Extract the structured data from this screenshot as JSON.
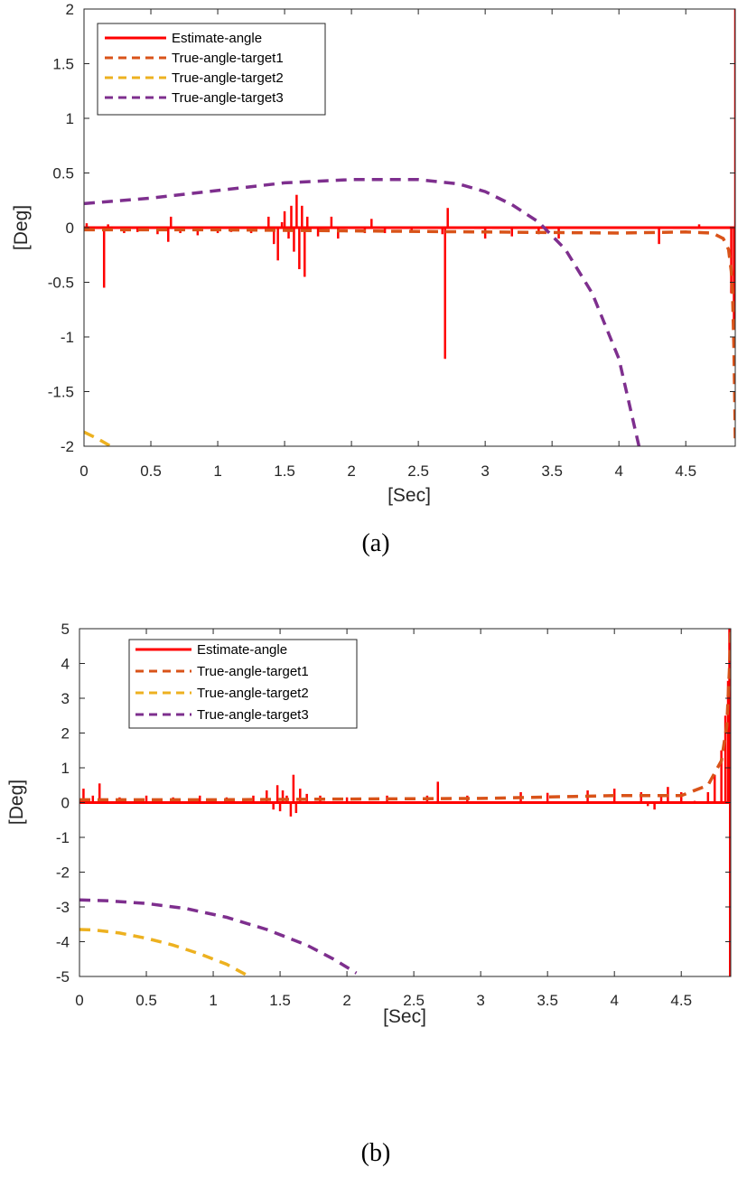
{
  "colors": {
    "estimate": "#ff0000",
    "target1": "#d95319",
    "target2": "#edb120",
    "target3": "#7e2f8e",
    "axis": "#262626"
  },
  "chart_data": [
    {
      "type": "line",
      "caption": "(a)",
      "xlabel": "[Sec]",
      "ylabel": "[Deg]",
      "xlim": [
        0,
        4.87
      ],
      "ylim": [
        -2,
        2
      ],
      "xticks": [
        "0",
        "0.5",
        "1",
        "1.5",
        "2",
        "2.5",
        "3",
        "3.5",
        "4",
        "4.5"
      ],
      "yticks": [
        "2",
        "1.5",
        "1",
        "0.5",
        "0",
        "-0.5",
        "-1",
        "-1.5",
        "-2"
      ],
      "legend_position": "top-left",
      "grid": false,
      "series": [
        {
          "name": "Estimate-angle",
          "style": "solid",
          "baseline": 0,
          "spikes": [
            [
              0.02,
              0.04
            ],
            [
              0.05,
              -0.03
            ],
            [
              0.15,
              -0.55
            ],
            [
              0.18,
              0.03
            ],
            [
              0.3,
              -0.05
            ],
            [
              0.4,
              -0.04
            ],
            [
              0.55,
              -0.06
            ],
            [
              0.63,
              -0.13
            ],
            [
              0.65,
              0.1
            ],
            [
              0.72,
              -0.05
            ],
            [
              0.85,
              -0.07
            ],
            [
              1.0,
              -0.05
            ],
            [
              1.1,
              -0.04
            ],
            [
              1.25,
              -0.05
            ],
            [
              1.38,
              0.1
            ],
            [
              1.42,
              -0.15
            ],
            [
              1.45,
              -0.3
            ],
            [
              1.48,
              0.05
            ],
            [
              1.5,
              0.15
            ],
            [
              1.53,
              -0.1
            ],
            [
              1.55,
              0.2
            ],
            [
              1.57,
              -0.22
            ],
            [
              1.59,
              0.3
            ],
            [
              1.61,
              -0.38
            ],
            [
              1.63,
              0.2
            ],
            [
              1.65,
              -0.45
            ],
            [
              1.67,
              0.1
            ],
            [
              1.75,
              -0.08
            ],
            [
              1.85,
              0.1
            ],
            [
              1.9,
              -0.1
            ],
            [
              2.1,
              -0.05
            ],
            [
              2.15,
              0.08
            ],
            [
              2.25,
              -0.05
            ],
            [
              2.45,
              -0.04
            ],
            [
              2.68,
              -0.06
            ],
            [
              2.7,
              -1.2
            ],
            [
              2.72,
              0.18
            ],
            [
              3.0,
              -0.1
            ],
            [
              3.2,
              -0.08
            ],
            [
              3.4,
              -0.06
            ],
            [
              3.55,
              -0.1
            ],
            [
              4.3,
              -0.15
            ],
            [
              4.6,
              0.03
            ],
            [
              4.84,
              -0.6
            ],
            [
              4.86,
              -0.9
            ],
            [
              4.87,
              2.0
            ]
          ]
        },
        {
          "name": "True-angle-target1",
          "style": "dashed",
          "x": [
            0,
            1,
            2,
            3,
            4,
            4.5,
            4.7,
            4.78,
            4.82,
            4.84,
            4.85,
            4.86,
            4.865,
            4.87
          ],
          "y": [
            -0.02,
            -0.02,
            -0.03,
            -0.04,
            -0.05,
            -0.04,
            -0.05,
            -0.1,
            -0.2,
            -0.4,
            -0.6,
            -1.1,
            -1.5,
            -1.95
          ]
        },
        {
          "name": "True-angle-target2",
          "style": "dashed",
          "x": [
            0,
            0.1,
            0.2
          ],
          "y": [
            -1.87,
            -1.93,
            -2.0
          ]
        },
        {
          "name": "True-angle-target3",
          "style": "dashed",
          "x": [
            0,
            0.5,
            1,
            1.5,
            2,
            2.5,
            2.8,
            3.0,
            3.2,
            3.4,
            3.6,
            3.8,
            4.0,
            4.15
          ],
          "y": [
            0.22,
            0.27,
            0.34,
            0.41,
            0.44,
            0.44,
            0.4,
            0.33,
            0.21,
            0.05,
            -0.2,
            -0.6,
            -1.2,
            -2.0
          ]
        }
      ]
    },
    {
      "type": "line",
      "caption": "(b)",
      "xlabel": "[Sec]",
      "ylabel": "[Deg]",
      "xlim": [
        0,
        4.87
      ],
      "ylim": [
        -5,
        5
      ],
      "xticks": [
        "0",
        "0.5",
        "1",
        "1.5",
        "2",
        "2.5",
        "3",
        "3.5",
        "4",
        "4.5"
      ],
      "yticks": [
        "5",
        "4",
        "3",
        "2",
        "1",
        "0",
        "-1",
        "-2",
        "-3",
        "-4",
        "-5"
      ],
      "legend_position": "top-left",
      "grid": false,
      "series": [
        {
          "name": "Estimate-angle",
          "style": "solid",
          "baseline": 0,
          "spikes": [
            [
              0.03,
              0.4
            ],
            [
              0.1,
              0.2
            ],
            [
              0.15,
              0.55
            ],
            [
              0.3,
              0.15
            ],
            [
              0.5,
              0.2
            ],
            [
              0.7,
              0.15
            ],
            [
              0.9,
              0.2
            ],
            [
              1.1,
              0.15
            ],
            [
              1.3,
              0.2
            ],
            [
              1.4,
              0.35
            ],
            [
              1.45,
              -0.2
            ],
            [
              1.48,
              0.5
            ],
            [
              1.5,
              -0.25
            ],
            [
              1.52,
              0.35
            ],
            [
              1.55,
              0.2
            ],
            [
              1.58,
              -0.4
            ],
            [
              1.6,
              0.8
            ],
            [
              1.62,
              -0.3
            ],
            [
              1.65,
              0.4
            ],
            [
              1.7,
              0.25
            ],
            [
              1.8,
              0.2
            ],
            [
              2.0,
              0.15
            ],
            [
              2.3,
              0.2
            ],
            [
              2.6,
              0.2
            ],
            [
              2.68,
              0.6
            ],
            [
              2.9,
              0.2
            ],
            [
              3.3,
              0.3
            ],
            [
              3.5,
              0.28
            ],
            [
              3.8,
              0.35
            ],
            [
              4.0,
              0.4
            ],
            [
              4.2,
              0.3
            ],
            [
              4.25,
              -0.1
            ],
            [
              4.3,
              -0.2
            ],
            [
              4.35,
              0.2
            ],
            [
              4.4,
              0.45
            ],
            [
              4.5,
              0.3
            ],
            [
              4.6,
              0.05
            ],
            [
              4.7,
              0.3
            ],
            [
              4.75,
              0.8
            ],
            [
              4.8,
              1.5
            ],
            [
              4.83,
              2.5
            ],
            [
              4.85,
              3.5
            ],
            [
              4.86,
              5.0
            ],
            [
              4.865,
              -5.0
            ]
          ]
        },
        {
          "name": "True-angle-target1",
          "style": "dashed",
          "x": [
            0,
            1,
            2,
            3,
            4,
            4.5,
            4.7,
            4.8,
            4.84,
            4.86,
            4.87
          ],
          "y": [
            0.08,
            0.08,
            0.1,
            0.12,
            0.2,
            0.2,
            0.5,
            1.2,
            2.2,
            3.8,
            5.0
          ]
        },
        {
          "name": "True-angle-target2",
          "style": "dashed",
          "x": [
            0,
            0.1,
            0.3,
            0.5,
            0.7,
            0.9,
            1.1,
            1.27
          ],
          "y": [
            -3.65,
            -3.66,
            -3.75,
            -3.9,
            -4.1,
            -4.35,
            -4.65,
            -5.0
          ]
        },
        {
          "name": "True-angle-target3",
          "style": "dashed",
          "x": [
            0,
            0.2,
            0.5,
            0.8,
            1.1,
            1.4,
            1.7,
            1.9,
            2.07
          ],
          "y": [
            -2.8,
            -2.82,
            -2.9,
            -3.05,
            -3.3,
            -3.65,
            -4.1,
            -4.5,
            -4.9
          ]
        }
      ]
    }
  ]
}
